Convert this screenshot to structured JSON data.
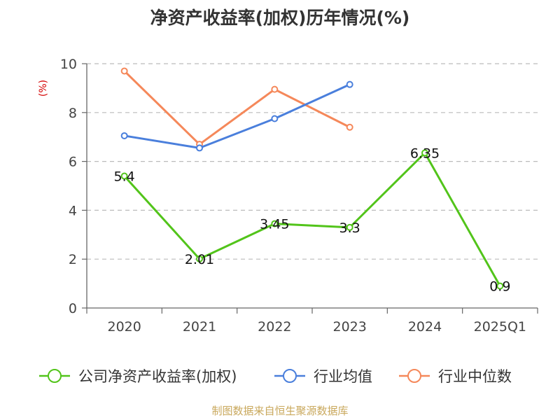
{
  "title": "净资产收益率(加权)历年情况(%)",
  "source": "制图数据来自恒生聚源数据库",
  "colors": {
    "series1": "#52c41a",
    "series2": "#4a7fdc",
    "series3": "#f5885a",
    "grid": "#bbbbbb",
    "axis": "#666666"
  },
  "chart_data": {
    "type": "line",
    "title": "净资产收益率(加权)历年情况(%)",
    "xlabel": "",
    "ylabel": "(%)",
    "categories": [
      "2020",
      "2021",
      "2022",
      "2023",
      "2024",
      "2025Q1"
    ],
    "ylim": [
      0,
      10
    ],
    "yticks": [
      0,
      2,
      4,
      6,
      8,
      10
    ],
    "grid": true,
    "legend_position": "bottom",
    "series": [
      {
        "name": "公司净资产收益率(加权)",
        "values": [
          5.4,
          2.01,
          3.45,
          3.3,
          6.35,
          0.9
        ],
        "labels": [
          "5.4",
          "2.01",
          "3.45",
          "3.3",
          "6.35",
          "0.9"
        ],
        "color": "#52c41a"
      },
      {
        "name": "行业均值",
        "values": [
          7.05,
          6.55,
          7.75,
          9.15,
          null,
          null
        ],
        "color": "#4a7fdc"
      },
      {
        "name": "行业中位数",
        "values": [
          9.7,
          6.7,
          8.95,
          7.4,
          null,
          null
        ],
        "color": "#f5885a"
      }
    ]
  }
}
